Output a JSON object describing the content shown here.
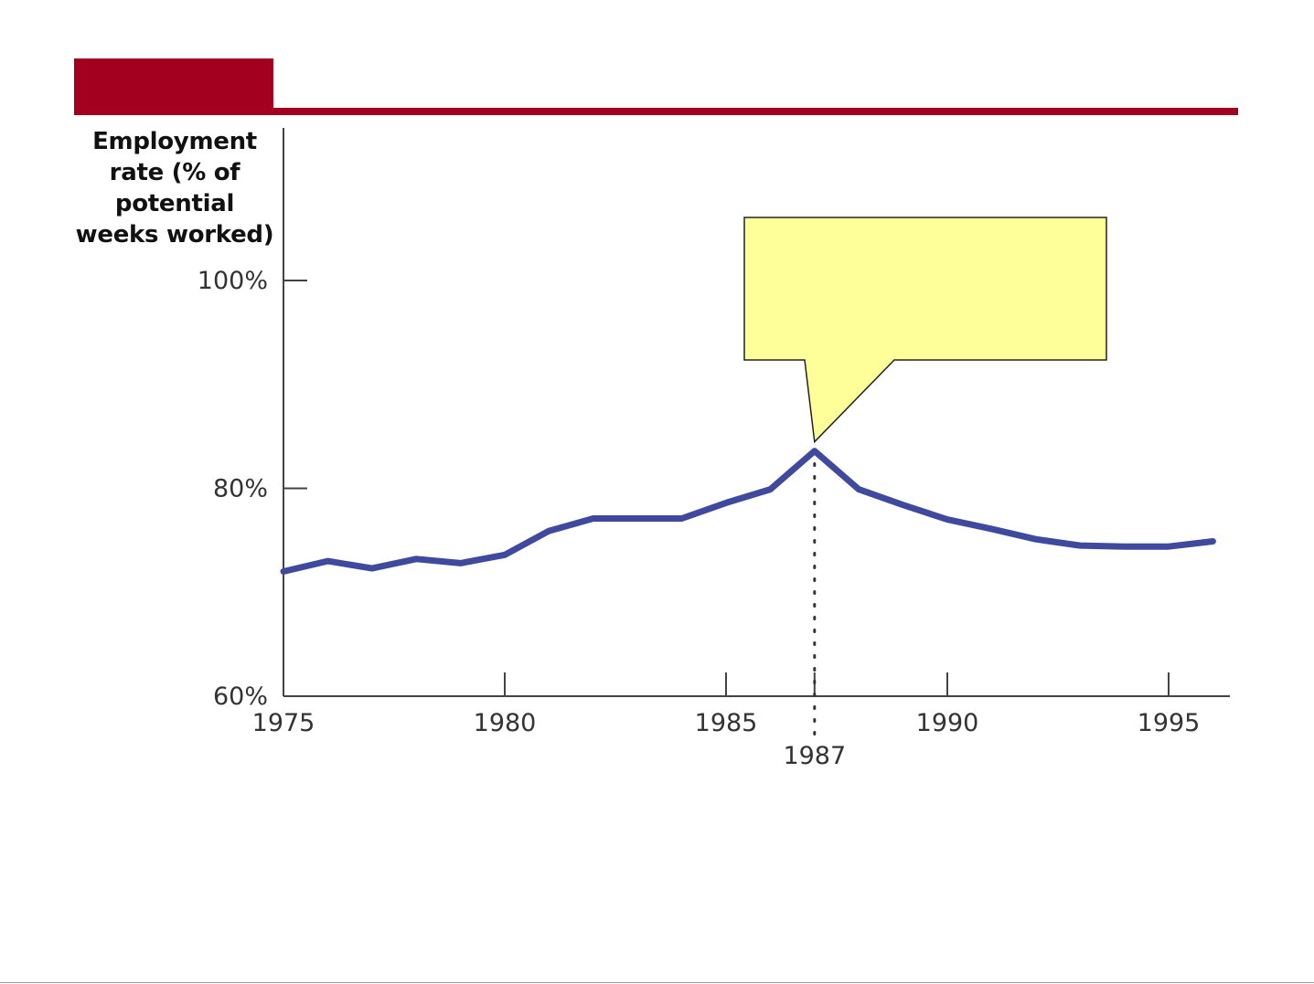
{
  "colors": {
    "accent": "#a3001f",
    "series": "#3f4a9e",
    "callout_fill": "#ffff99",
    "axis": "#444444"
  },
  "chart_data": {
    "type": "line",
    "ylabel": "Employment\nrate (% of\npotential\nweeks worked)",
    "xlabel": "",
    "title": "",
    "xlim": [
      1975,
      1996.5
    ],
    "ylim": [
      60,
      115
    ],
    "x_ticks": [
      {
        "value": 1975,
        "label": "1975"
      },
      {
        "value": 1980,
        "label": "1980"
      },
      {
        "value": 1985,
        "label": "1985"
      },
      {
        "value": 1987,
        "label": "1987"
      },
      {
        "value": 1990,
        "label": "1990"
      },
      {
        "value": 1995,
        "label": "1995"
      }
    ],
    "y_ticks": [
      {
        "value": 60,
        "label": "60%"
      },
      {
        "value": 80,
        "label": "80%"
      },
      {
        "value": 100,
        "label": "100%"
      }
    ],
    "grid": false,
    "x": [
      1975,
      1976,
      1977,
      1978,
      1979,
      1980,
      1981,
      1982,
      1983,
      1984,
      1985,
      1986,
      1987,
      1988,
      1989,
      1990,
      1991,
      1992,
      1993,
      1994,
      1995,
      1996
    ],
    "series": [
      {
        "values": [
          72.0,
          73.0,
          72.3,
          73.2,
          72.8,
          73.6,
          75.9,
          77.1,
          77.1,
          77.1,
          78.6,
          79.9,
          83.6,
          79.9,
          78.4,
          77.0,
          76.1,
          75.1,
          74.5,
          74.4,
          74.4,
          74.9
        ]
      }
    ],
    "annotations": [
      {
        "type": "vline",
        "x": 1987,
        "y_from": 60,
        "y_to": 83.6,
        "style": "dotted"
      },
      {
        "type": "callout",
        "x": 1987,
        "y": 83.6,
        "text": ""
      }
    ]
  }
}
